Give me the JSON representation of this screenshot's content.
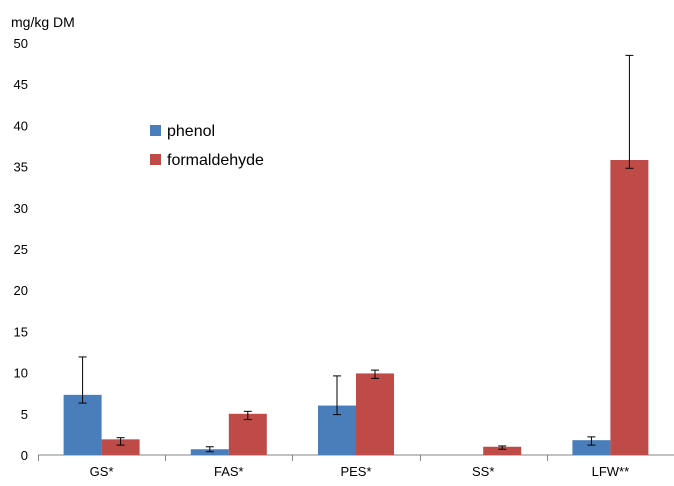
{
  "chart_data": {
    "type": "bar",
    "title": "",
    "ylabel": "mg/kg DM",
    "xlabel": "",
    "ylim": [
      0,
      50
    ],
    "yticks": [
      0,
      5,
      10,
      15,
      20,
      25,
      30,
      35,
      40,
      45,
      50
    ],
    "grid": false,
    "legend_position": "upper-left",
    "categories": [
      "GS*",
      "FAS*",
      "PES*",
      "SS*",
      "LFW**"
    ],
    "series": [
      {
        "name": "phenol",
        "color": "#4a7ebb",
        "values": [
          7.3,
          0.7,
          6.0,
          0,
          1.8
        ],
        "error_low": [
          6.3,
          0.4,
          4.9,
          null,
          1.2
        ],
        "error_high": [
          11.9,
          1.0,
          9.6,
          null,
          2.2
        ]
      },
      {
        "name": "formaldehyde",
        "color": "#be4b48",
        "values": [
          1.9,
          5.0,
          9.9,
          1.0,
          35.8
        ],
        "error_low": [
          1.2,
          4.3,
          9.3,
          0.7,
          34.8
        ],
        "error_high": [
          2.1,
          5.3,
          10.3,
          1.1,
          48.5
        ]
      }
    ]
  }
}
